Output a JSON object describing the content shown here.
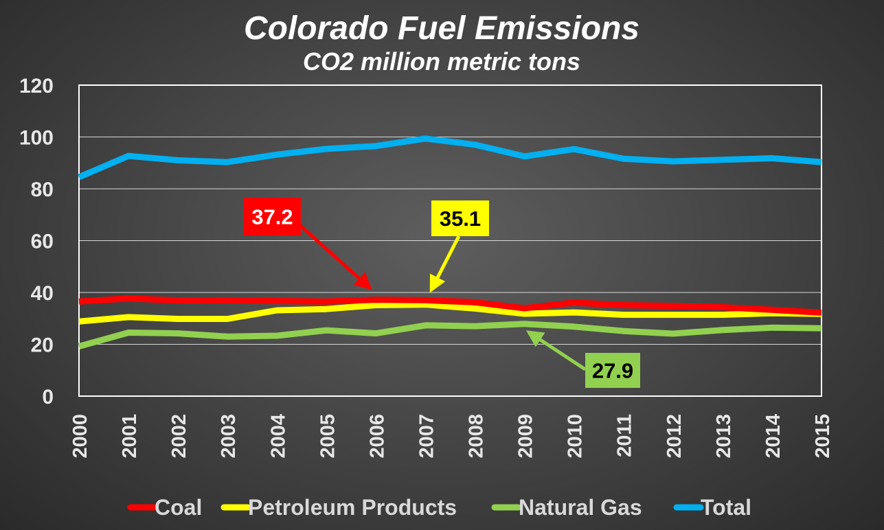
{
  "chart_data": {
    "type": "line",
    "title": "Colorado Fuel Emissions",
    "subtitle": "CO2 million metric tons",
    "xlabel": "",
    "ylabel": "",
    "x": [
      "2000",
      "2001",
      "2002",
      "2003",
      "2004",
      "2005",
      "2006",
      "2007",
      "2008",
      "2009",
      "2010",
      "2011",
      "2012",
      "2013",
      "2014",
      "2015"
    ],
    "ylim": [
      0,
      120
    ],
    "yticks": [
      "0",
      "20",
      "40",
      "60",
      "80",
      "100",
      "120"
    ],
    "grid": true,
    "legend_position": "bottom",
    "series": [
      {
        "name": "Coal",
        "color": "#ff0000",
        "values": [
          36.5,
          37.7,
          36.9,
          37.0,
          36.7,
          36.5,
          37.2,
          37.0,
          36.2,
          33.9,
          36.1,
          35.1,
          34.8,
          34.3,
          33.3,
          32.2
        ]
      },
      {
        "name": "Petroleum Products",
        "color": "#ffff00",
        "values": [
          28.8,
          30.5,
          29.8,
          29.8,
          33.1,
          33.6,
          35.1,
          35.3,
          33.8,
          31.8,
          32.3,
          31.4,
          31.4,
          31.4,
          32.0,
          31.7
        ]
      },
      {
        "name": "Natural Gas",
        "color": "#92d050",
        "values": [
          19.2,
          24.5,
          24.2,
          23.0,
          23.3,
          25.4,
          24.2,
          27.3,
          27.0,
          27.9,
          26.8,
          25.1,
          24.1,
          25.5,
          26.4,
          26.2
        ]
      },
      {
        "name": "Total",
        "color": "#00b0f0",
        "values": [
          84.5,
          92.7,
          91.0,
          90.3,
          93.2,
          95.4,
          96.5,
          99.4,
          97.0,
          92.5,
          95.3,
          91.6,
          90.6,
          91.2,
          91.8,
          90.3
        ]
      }
    ],
    "annotations": [
      {
        "text": "37.2",
        "series": "Coal",
        "year": "2006",
        "bg": "#ff0000",
        "fg": "#ffffff"
      },
      {
        "text": "35.1",
        "series": "Petroleum Products",
        "year": "2006",
        "bg": "#ffff00",
        "fg": "#000000"
      },
      {
        "text": "27.9",
        "series": "Natural Gas",
        "year": "2009",
        "bg": "#92d050",
        "fg": "#000000"
      }
    ]
  }
}
